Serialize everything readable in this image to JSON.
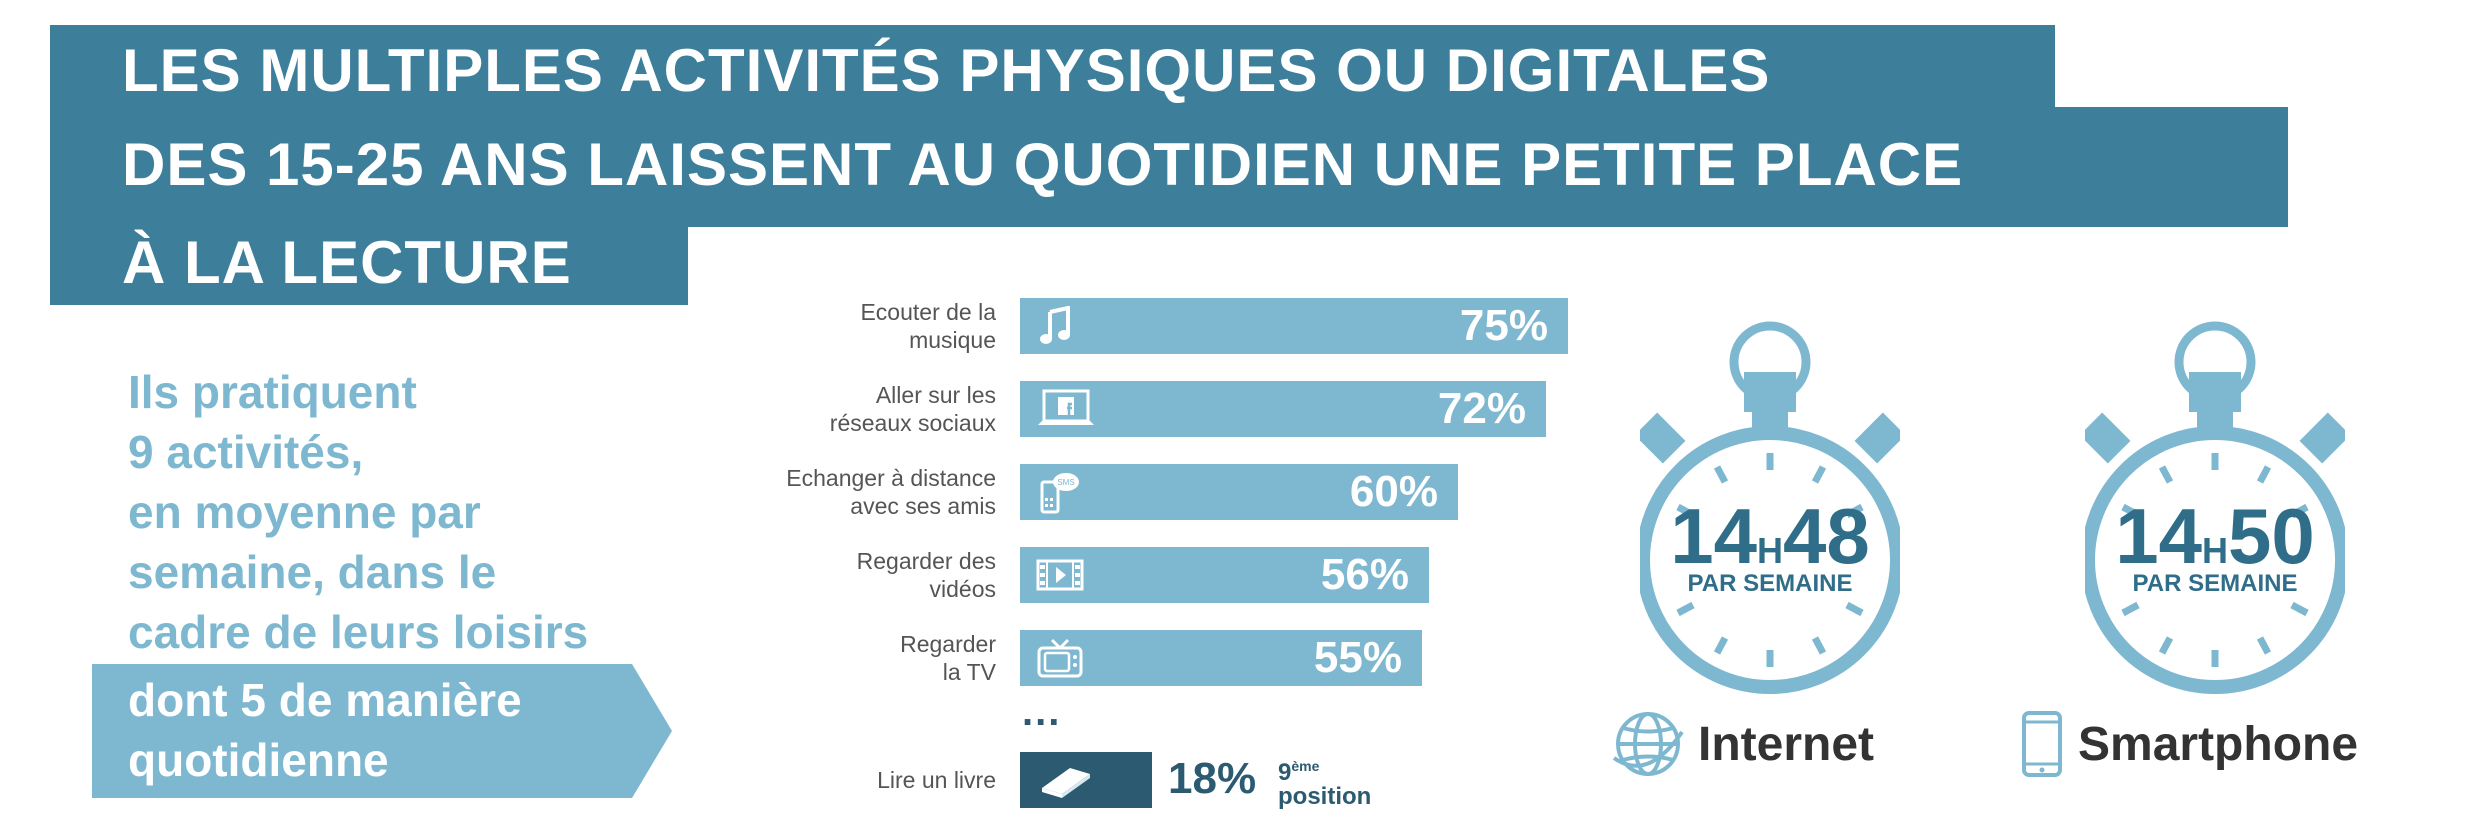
{
  "title": {
    "line1": "LES MULTIPLES ACTIVITÉS PHYSIQUES OU DIGITALES",
    "line2": "DES 15-25 ANS LAISSENT AU QUOTIDIEN UNE PETITE PLACE",
    "line3": "À LA LECTURE"
  },
  "lead": {
    "lines": [
      "Ils pratiquent",
      "9 activités,",
      "en moyenne par",
      "semaine, dans le",
      "cadre de leurs loisirs"
    ],
    "callout": [
      "dont 5 de manière",
      "quotidienne"
    ]
  },
  "chart_data": {
    "type": "bar",
    "categories": [
      [
        "Ecouter de la",
        "musique"
      ],
      [
        "Aller sur les",
        "réseaux sociaux"
      ],
      [
        "Echanger à distance",
        "avec ses amis"
      ],
      [
        "Regarder des",
        "vidéos"
      ],
      [
        "Regarder",
        "la TV"
      ],
      [
        "Lire un livre"
      ]
    ],
    "values": [
      75,
      72,
      60,
      56,
      55,
      18
    ],
    "value_labels": [
      "75%",
      "72%",
      "60%",
      "56%",
      "55%",
      "18%"
    ],
    "icons": [
      "music-note-icon",
      "laptop-facebook-icon",
      "phone-sms-icon",
      "video-film-icon",
      "tv-icon",
      "book-icon"
    ],
    "ellipsis": "...",
    "highlight_rank": {
      "number": "9",
      "suffix": "ème",
      "word": "position"
    },
    "colors": {
      "bar": "#7eb8d0",
      "highlight": "#2c5a70"
    }
  },
  "timers": [
    {
      "hours": "14",
      "h": "H",
      "minutes": "48",
      "caption": "PAR SEMAINE",
      "device": "Internet",
      "device_icon": "globe-icon"
    },
    {
      "hours": "14",
      "h": "H",
      "minutes": "50",
      "caption": "PAR SEMAINE",
      "device": "Smartphone",
      "device_icon": "smartphone-icon"
    }
  ],
  "colors": {
    "title_bg": "#3d7f9a",
    "light": "#7eb8d0",
    "dark": "#2c5a70",
    "timer": "#7eb8d0",
    "timer_text": "#2f6d88"
  }
}
